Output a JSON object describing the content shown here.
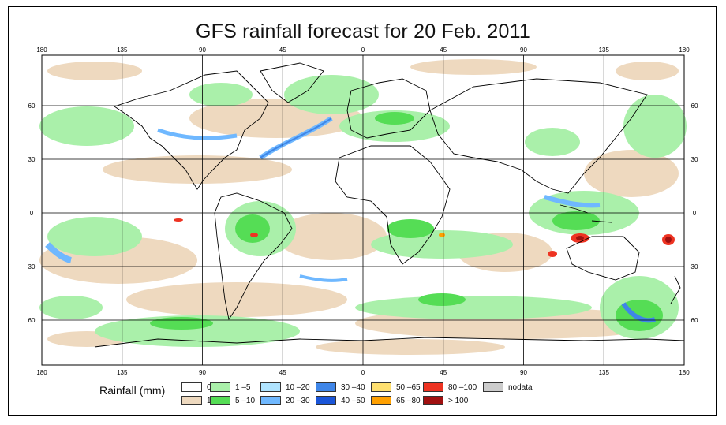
{
  "title": "GFS rainfall forecast for 20 Feb. 2011",
  "top_lon_labels": [
    "180",
    "135",
    "90",
    "45",
    "0",
    "45",
    "90",
    "135",
    "180"
  ],
  "bottom_lon_labels": [
    "180",
    "135",
    "90",
    "45",
    "0",
    "45",
    "90",
    "135",
    "180"
  ],
  "left_lat_labels": [
    "60",
    "30",
    "0",
    "30",
    "60"
  ],
  "right_lat_labels": [
    "60",
    "30",
    "0",
    "30",
    "60"
  ],
  "legend": {
    "label": "Rainfall (mm)",
    "items": [
      {
        "text": "0",
        "color": "#ffffff"
      },
      {
        "text": "1",
        "color": "#eed9bf"
      },
      {
        "text": "1 –5",
        "color": "#aaf0aa"
      },
      {
        "text": "5 –10",
        "color": "#55dd55"
      },
      {
        "text": "10 –20",
        "color": "#b0e4ff"
      },
      {
        "text": "20 –30",
        "color": "#6fb8ff"
      },
      {
        "text": "30 –40",
        "color": "#3f86e8"
      },
      {
        "text": "40 –50",
        "color": "#1a55d8"
      },
      {
        "text": "50 –65",
        "color": "#ffe070"
      },
      {
        "text": "65 –80",
        "color": "#ffa000"
      },
      {
        "text": "80 –100",
        "color": "#ee3322"
      },
      {
        "text": "> 100",
        "color": "#a01010"
      },
      {
        "text": "nodata",
        "color": "#cccccc"
      }
    ]
  },
  "colors": {
    "tan": "#eed9bf",
    "light_green": "#aaf0aa",
    "green": "#55dd55",
    "light_blue": "#b0e4ff",
    "blue": "#6fb8ff",
    "dark_blue": "#3f86e8",
    "red": "#ee3322",
    "dark_red": "#a01010",
    "orange": "#ffa000"
  }
}
